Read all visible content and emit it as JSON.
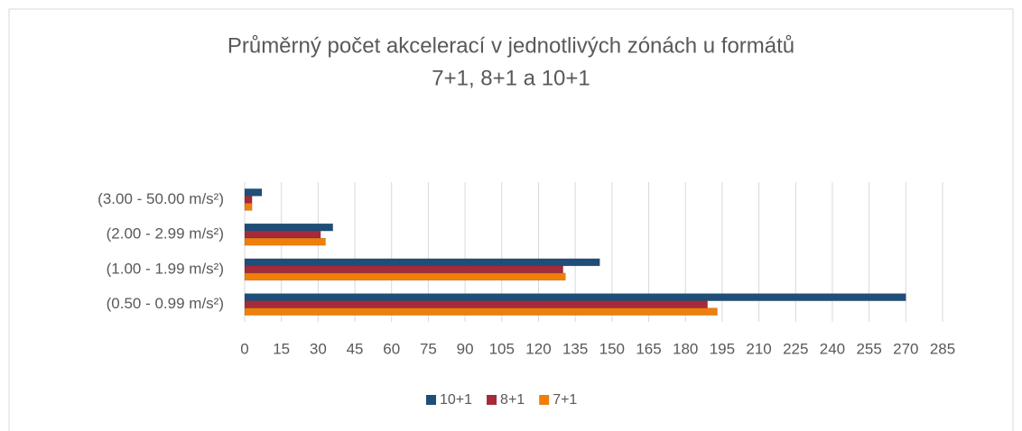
{
  "chart_data": {
    "type": "barh",
    "title": [
      "Průměrný počet akcelerací v jednotlivých zónách u formátů",
      "7+1, 8+1 a 10+1"
    ],
    "categories": [
      "(3.00 - 50.00 m/s²)",
      "(2.00 - 2.99 m/s²)",
      "(1.00 - 1.99 m/s²)",
      "(0.50 - 0.99 m/s²)"
    ],
    "series": [
      {
        "name": "10+1",
        "color": "#1f4e79",
        "values": [
          7,
          36,
          145,
          270
        ]
      },
      {
        "name": "8+1",
        "color": "#a52a3a",
        "values": [
          3,
          31,
          130,
          189
        ]
      },
      {
        "name": "7+1",
        "color": "#f07f09",
        "values": [
          3,
          33,
          131,
          193
        ]
      }
    ],
    "xlim": [
      0,
      285
    ],
    "xticks": [
      0,
      15,
      30,
      45,
      60,
      75,
      90,
      105,
      120,
      135,
      150,
      165,
      180,
      195,
      210,
      225,
      240,
      255,
      270,
      285
    ],
    "grid": true,
    "legend": "bottom"
  }
}
